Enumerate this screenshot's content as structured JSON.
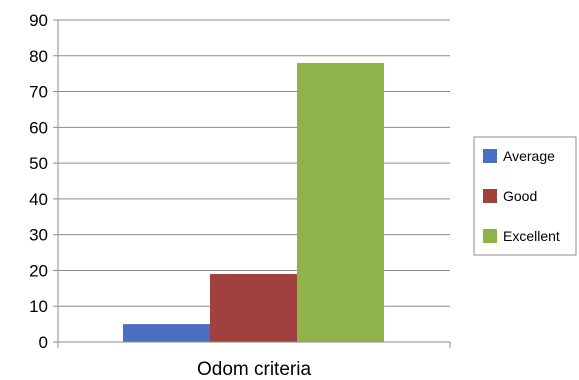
{
  "chart_data": {
    "type": "bar",
    "categories": [
      "Odom criteria"
    ],
    "series": [
      {
        "name": "Average",
        "values": [
          5
        ],
        "color": "#4a6fc1"
      },
      {
        "name": "Good",
        "values": [
          19
        ],
        "color": "#a0413d"
      },
      {
        "name": "Excellent",
        "values": [
          78
        ],
        "color": "#8fb34a"
      }
    ],
    "ylim": [
      0,
      90
    ],
    "yticks": [
      0,
      10,
      20,
      30,
      40,
      50,
      60,
      70,
      80,
      90
    ],
    "grid": true,
    "legend": "right",
    "grid_color": "#8c8c8c"
  }
}
